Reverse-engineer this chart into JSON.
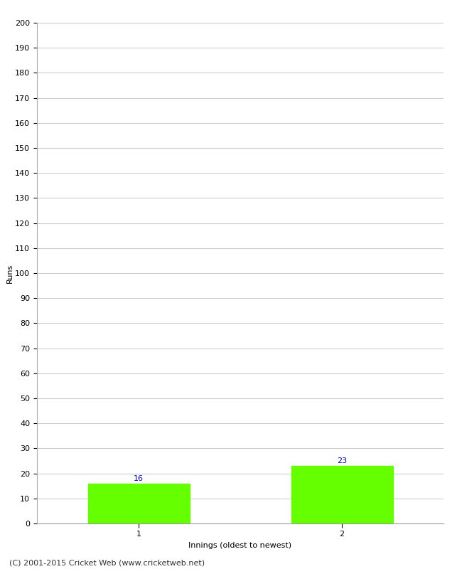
{
  "categories": [
    "1",
    "2"
  ],
  "values": [
    16,
    23
  ],
  "bar_color": "#66ff00",
  "bar_edge_color": "#66ff00",
  "ylabel": "Runs",
  "xlabel": "Innings (oldest to newest)",
  "ylim": [
    0,
    200
  ],
  "yticks": [
    0,
    10,
    20,
    30,
    40,
    50,
    60,
    70,
    80,
    90,
    100,
    110,
    120,
    130,
    140,
    150,
    160,
    170,
    180,
    190,
    200
  ],
  "value_label_color": "#0000cc",
  "value_label_fontsize": 8,
  "axis_label_fontsize": 8,
  "tick_fontsize": 8,
  "footer_text": "(C) 2001-2015 Cricket Web (www.cricketweb.net)",
  "footer_fontsize": 8,
  "background_color": "#ffffff",
  "grid_color": "#cccccc",
  "bar_positions": [
    1,
    2
  ],
  "bar_width": 0.5,
  "xlim": [
    0.5,
    2.5
  ]
}
